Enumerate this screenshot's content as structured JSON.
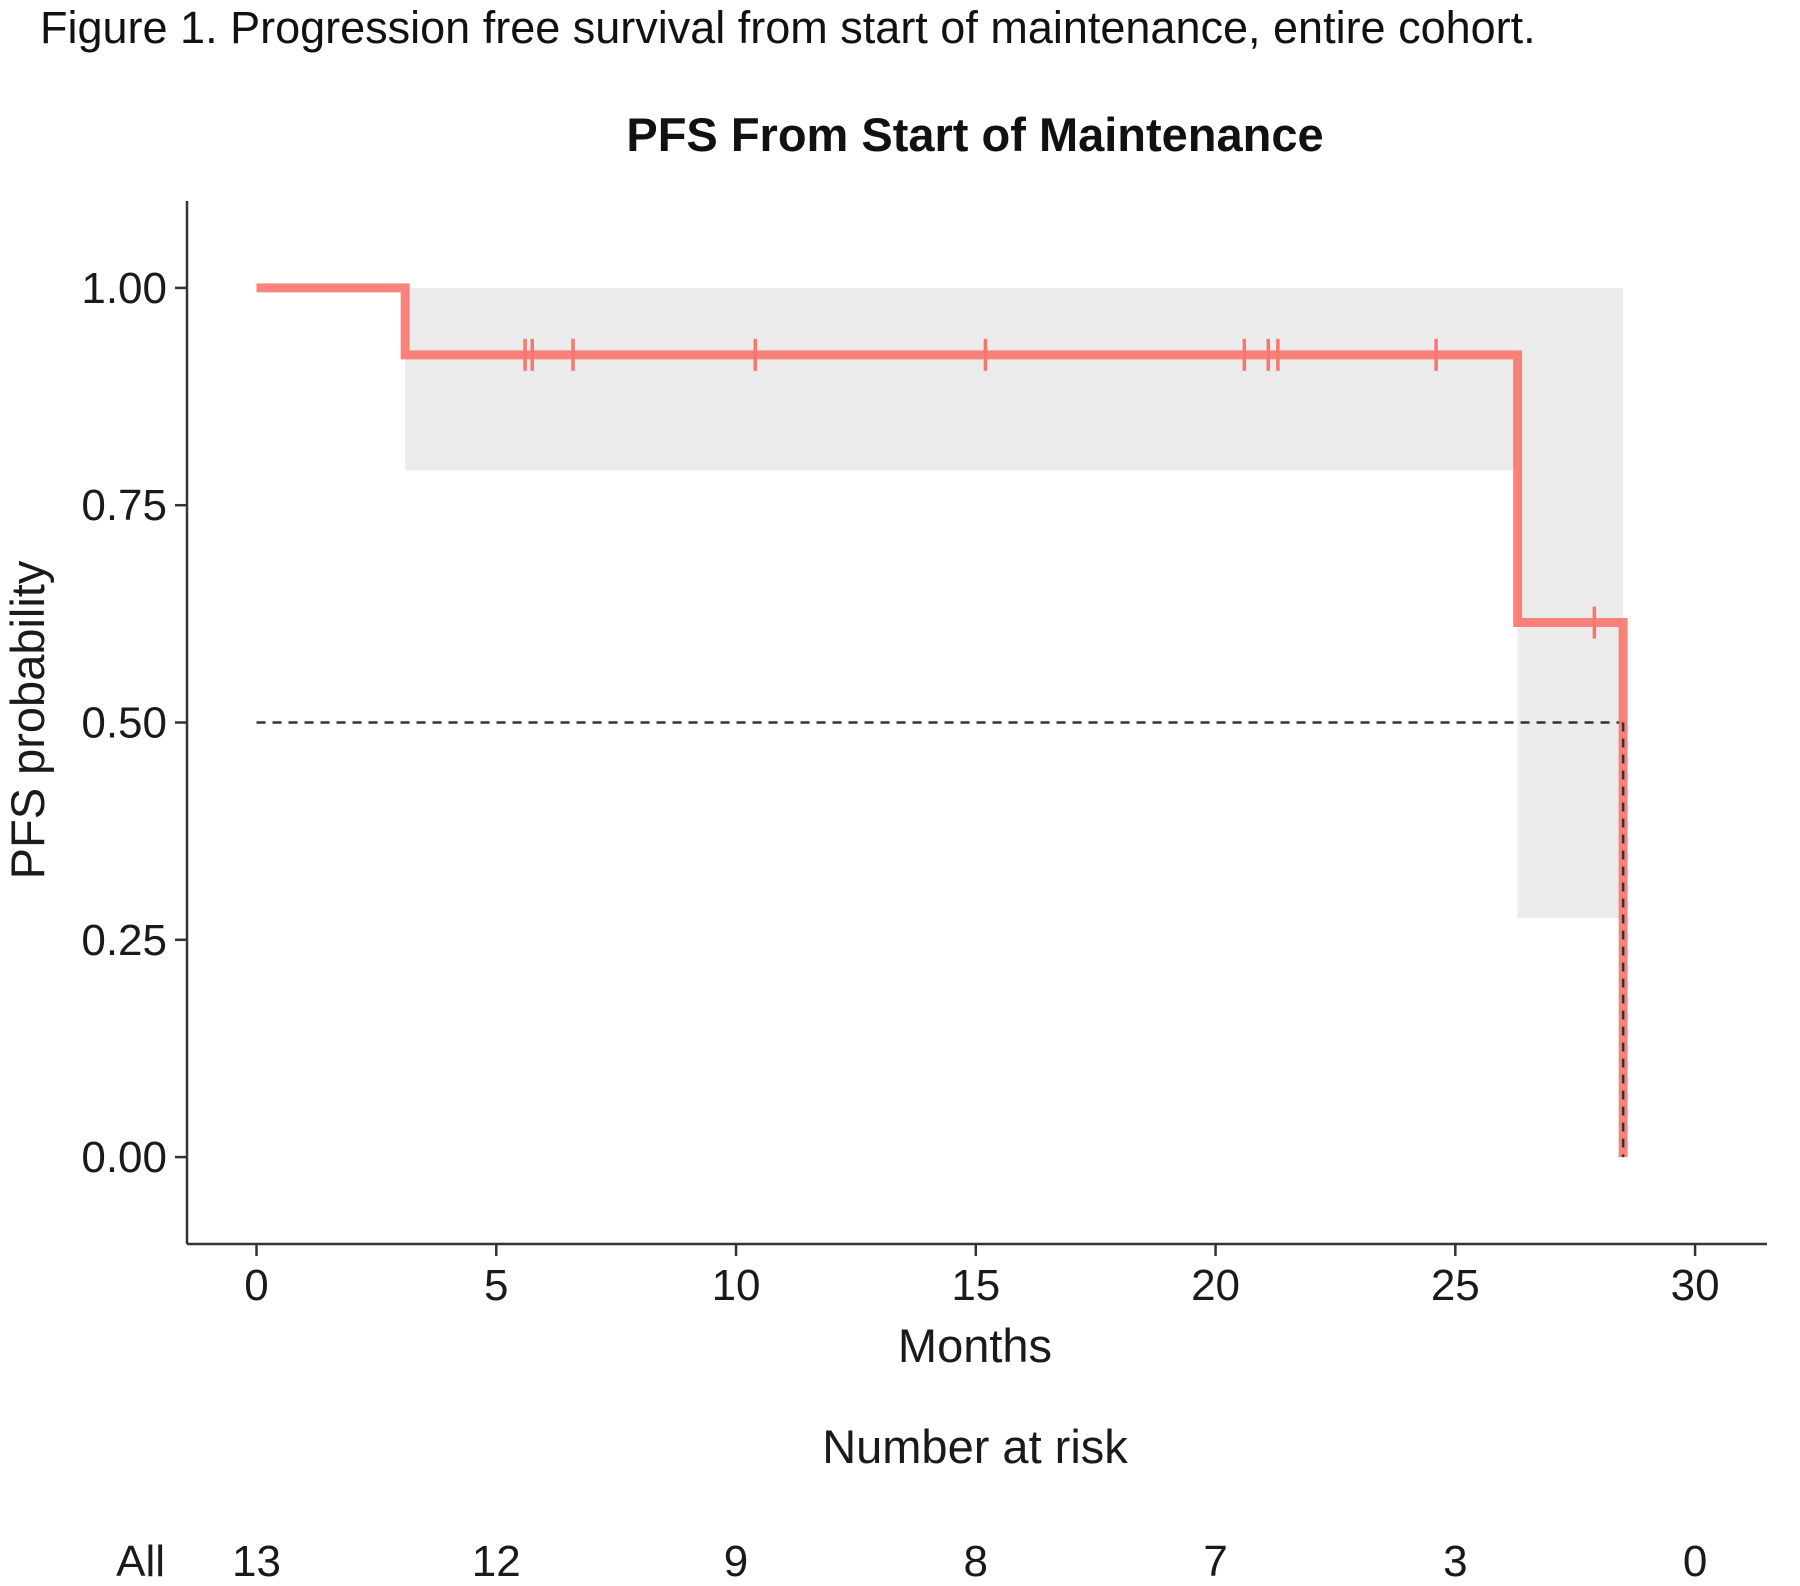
{
  "caption": "Figure 1. Progression free survival from start of maintenance, entire cohort.",
  "chart_data": {
    "type": "line",
    "title": "PFS From Start of Maintenance",
    "xlabel": "Months",
    "ylabel": "PFS probability",
    "xlim": [
      -1.45,
      31.5
    ],
    "ylim": [
      -0.1,
      1.1
    ],
    "x_ticks": [
      0,
      5,
      10,
      15,
      20,
      25,
      30
    ],
    "y_ticks": [
      "0.00",
      "0.25",
      "0.50",
      "0.75",
      "1.00"
    ],
    "grid": false,
    "series": [
      {
        "kind": "step",
        "x": [
          0,
          3.1,
          26.3,
          28.5,
          28.5
        ],
        "y": [
          1.0,
          0.923,
          0.615,
          0.615,
          0.0
        ],
        "color": "#f8766d"
      }
    ],
    "censor_marks": {
      "x": [
        5.6,
        5.75,
        6.6,
        10.4,
        15.2,
        20.6,
        21.1,
        21.3,
        24.6,
        27.9
      ],
      "y": [
        0.923,
        0.923,
        0.923,
        0.923,
        0.923,
        0.923,
        0.923,
        0.923,
        0.923,
        0.615
      ]
    },
    "confidence_band": [
      {
        "x0": 3.1,
        "x1": 26.3,
        "lower": 0.79,
        "upper": 1.0
      },
      {
        "x0": 26.3,
        "x1": 28.5,
        "lower": 0.275,
        "upper": 1.0
      }
    ],
    "median_line": {
      "y": 0.5,
      "x": 28.5
    },
    "band_color": "#ebebeb",
    "risk_table": {
      "title": "Number at risk",
      "strata_label": "All",
      "strata_color": "#f8766d",
      "times": [
        0,
        5,
        10,
        15,
        20,
        25,
        30
      ],
      "counts": [
        "13",
        "12",
        "9",
        "8",
        "7",
        "3",
        "0"
      ]
    }
  }
}
